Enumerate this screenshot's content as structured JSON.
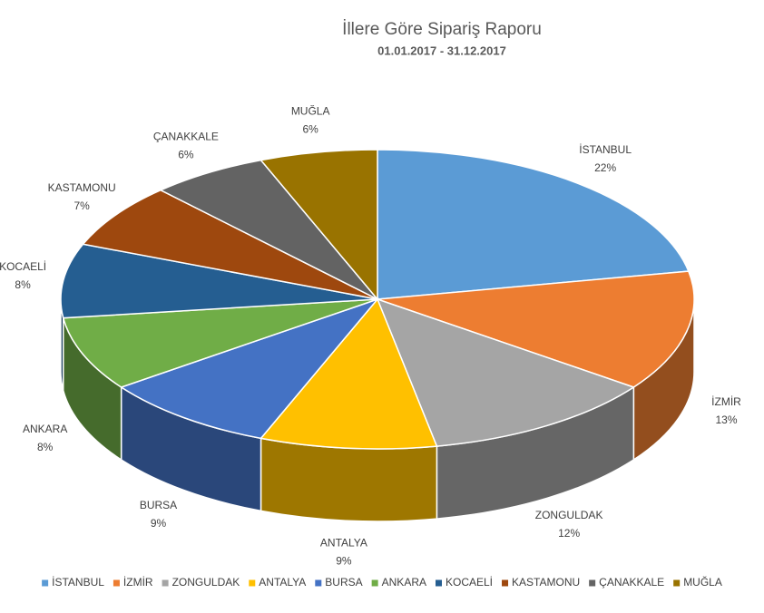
{
  "chart_data": {
    "type": "pie3d",
    "title": "İllere Göre Sipariş Raporu",
    "subtitle": "01.01.2017 - 31.12.2017",
    "categories": [
      "İSTANBUL",
      "İZMİR",
      "ZONGULDAK",
      "ANTALYA",
      "BURSA",
      "ANKARA",
      "KOCAELİ",
      "KASTAMONU",
      "ÇANAKKALE",
      "MUĞLA"
    ],
    "values": [
      22,
      13,
      12,
      9,
      9,
      8,
      8,
      7,
      6,
      6
    ],
    "value_labels": [
      "22%",
      "13%",
      "12%",
      "9%",
      "9%",
      "8%",
      "8%",
      "7%",
      "6%",
      "6%"
    ],
    "colors": [
      "#5b9bd5",
      "#ed7d31",
      "#a5a5a5",
      "#ffc000",
      "#4472c4",
      "#70ad47",
      "#255e91",
      "#9e480e",
      "#636363",
      "#997300"
    ],
    "legend": "bottom"
  }
}
